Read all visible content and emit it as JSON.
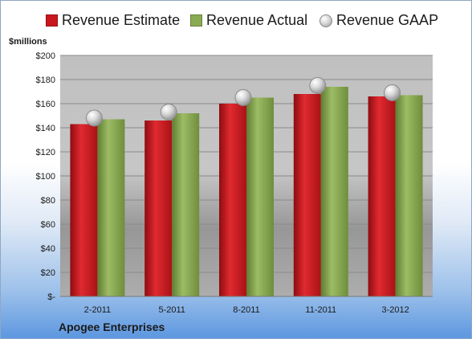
{
  "legend": {
    "estimate": "Revenue Estimate",
    "actual": "Revenue Actual",
    "gaap": "Revenue GAAP"
  },
  "colors": {
    "estimate": "#c8171d",
    "actual": "#8aab52",
    "gaap": "#c9c9c9"
  },
  "ylabel": "$millions",
  "company": "Apogee Enterprises",
  "chart_data": {
    "type": "bar",
    "categories": [
      "2-2011",
      "5-2011",
      "8-2011",
      "11-2011",
      "3-2012"
    ],
    "series": [
      {
        "name": "Revenue Estimate",
        "values": [
          143,
          146,
          160,
          168,
          166
        ]
      },
      {
        "name": "Revenue Actual",
        "values": [
          147,
          152,
          165,
          174,
          167
        ]
      },
      {
        "name": "Revenue GAAP",
        "values": [
          148,
          153,
          165,
          175,
          169
        ]
      }
    ],
    "ylabel": "$millions",
    "ylim": [
      0,
      200
    ],
    "yticks": [
      "$-",
      "$20",
      "$40",
      "$60",
      "$80",
      "$100",
      "$120",
      "$140",
      "$160",
      "$180",
      "$200"
    ],
    "grid": true,
    "legend_position": "top"
  }
}
